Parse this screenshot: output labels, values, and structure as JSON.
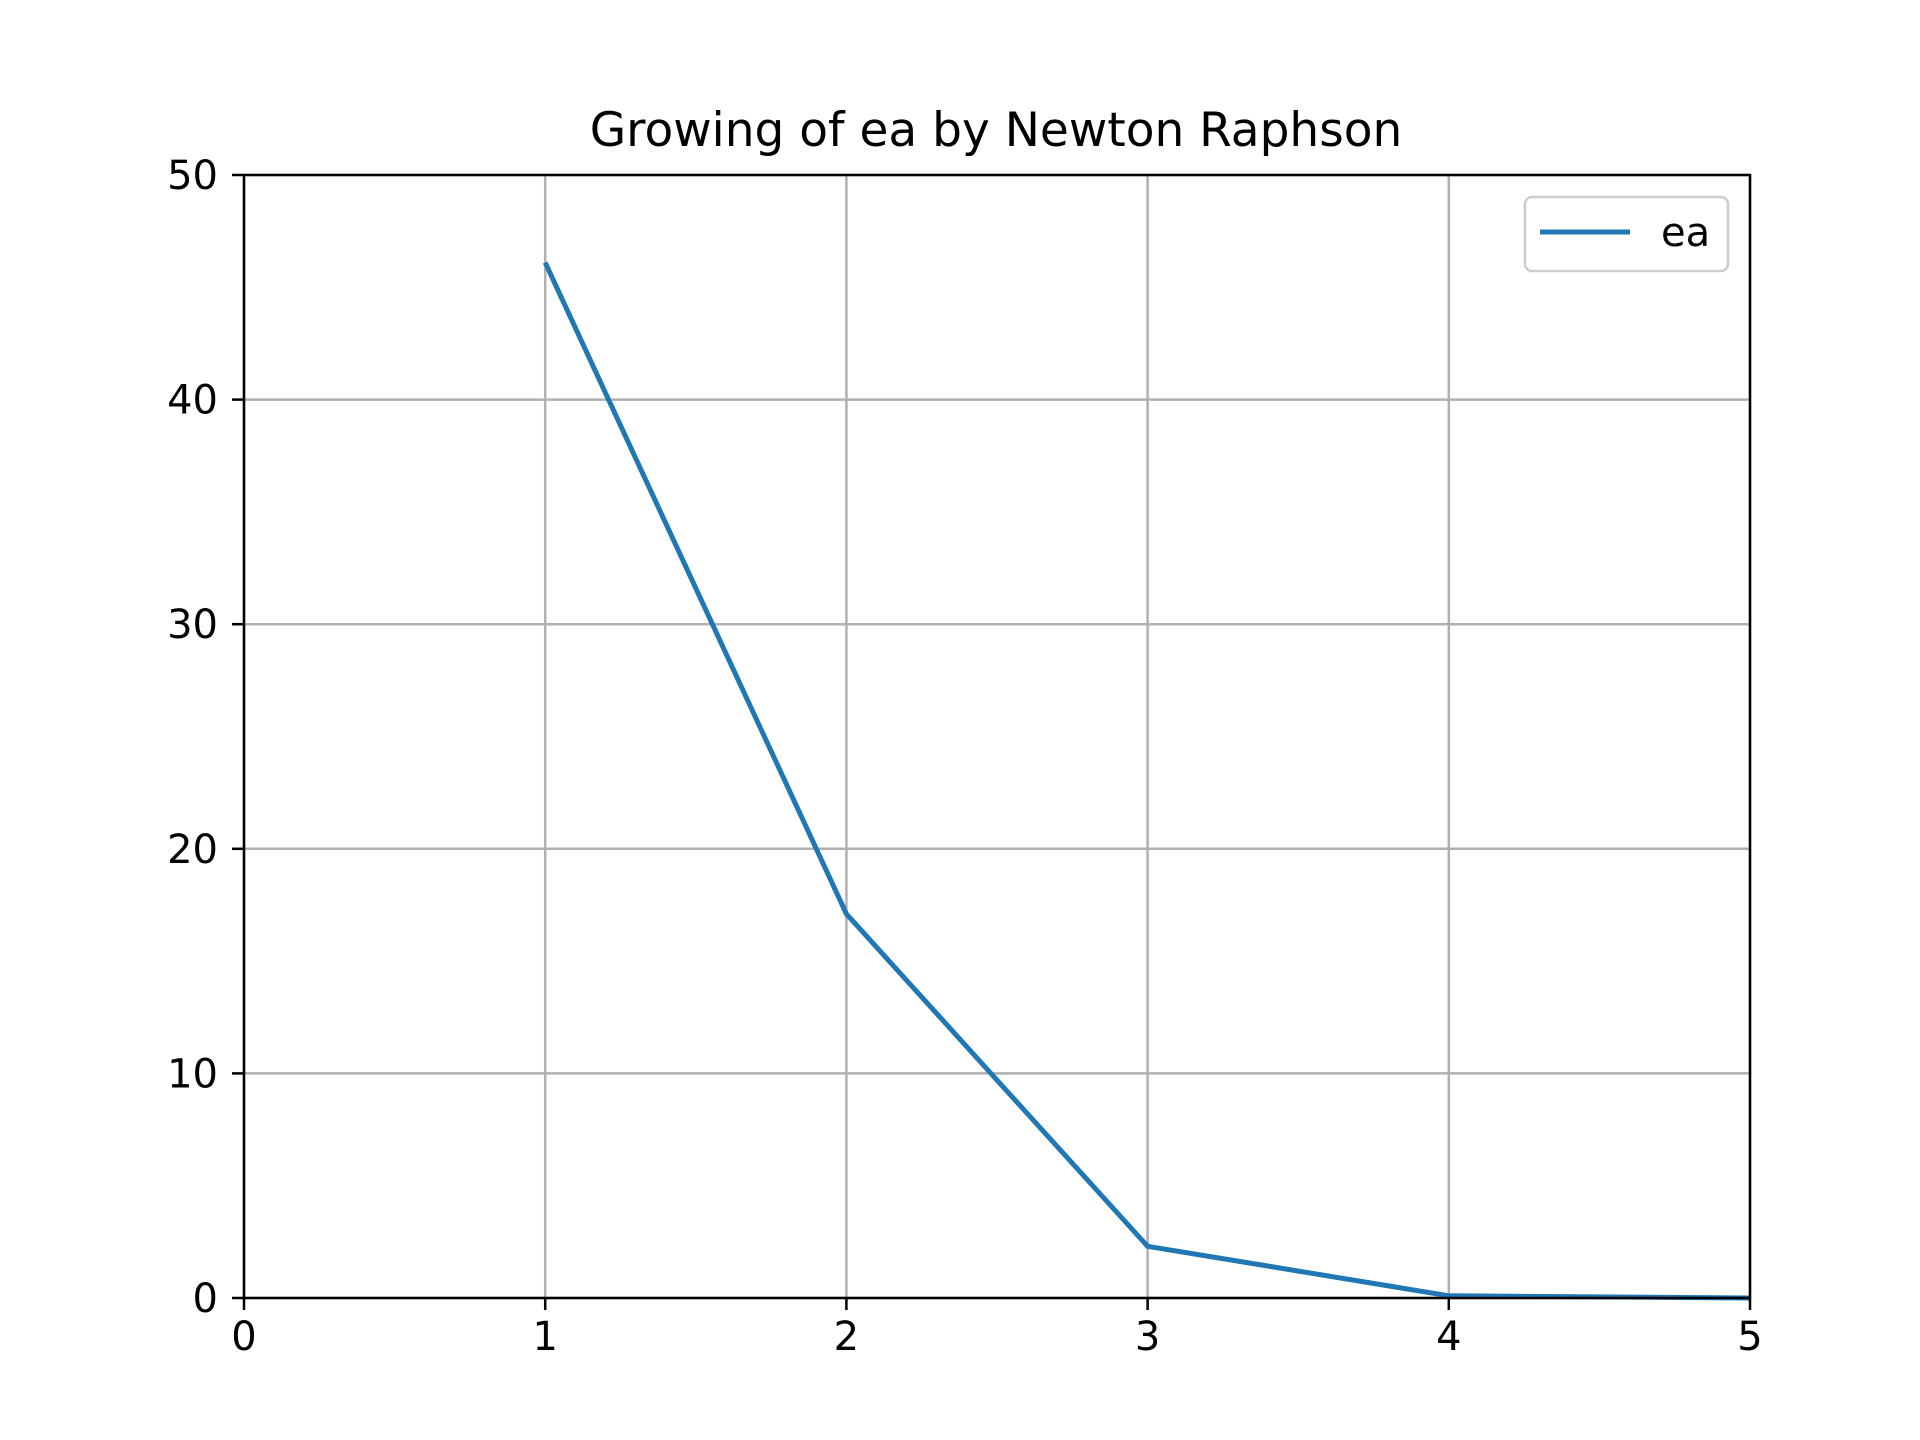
{
  "chart_data": {
    "type": "line",
    "title": "Growing of ea by Newton Raphson",
    "xlabel": "",
    "ylabel": "",
    "xlim": [
      0,
      5
    ],
    "ylim": [
      0,
      50
    ],
    "xticks": [
      0,
      1,
      2,
      3,
      4,
      5
    ],
    "yticks": [
      0,
      10,
      20,
      30,
      40,
      50
    ],
    "grid": true,
    "legend_position": "top-right",
    "series": [
      {
        "name": "ea",
        "color": "#1f77b4",
        "x": [
          1,
          2,
          3,
          4,
          5
        ],
        "y": [
          46.1,
          17.1,
          2.3,
          0.1,
          0.0
        ]
      }
    ]
  }
}
